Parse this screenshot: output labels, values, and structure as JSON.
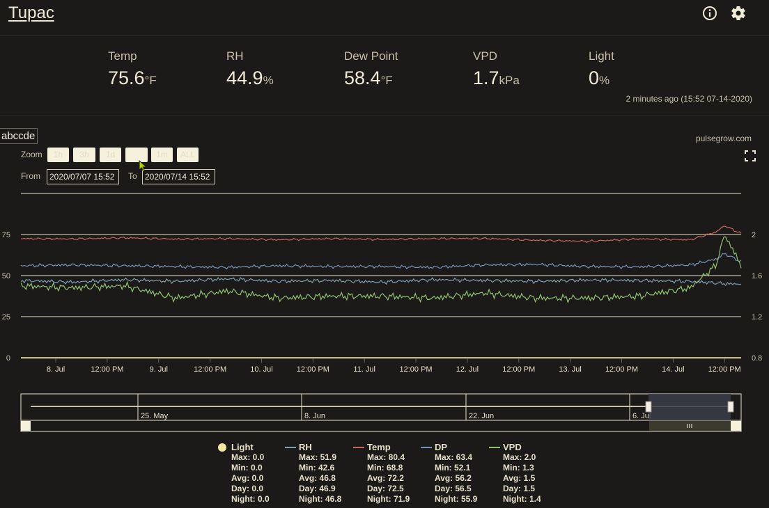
{
  "app": {
    "title": "Tupac"
  },
  "header_icons": [
    "info-icon",
    "gear-icon"
  ],
  "stats": [
    {
      "label": "Temp",
      "value": "75.6",
      "unit": "°F"
    },
    {
      "label": "RH",
      "value": "44.9",
      "unit": "%"
    },
    {
      "label": "Dew Point",
      "value": "58.4",
      "unit": "°F"
    },
    {
      "label": "VPD",
      "value": "1.7",
      "unit": "kPa"
    },
    {
      "label": "Light",
      "value": "0",
      "unit": "%"
    }
  ],
  "updated": "2 minutes ago (15:52 07-14-2020)",
  "chart_panel": {
    "title": "abccde",
    "site": "pulsegrow.com",
    "zoom_label": "Zoom",
    "zoom_buttons": [
      "1h",
      "3h",
      "1d",
      "1w",
      "1m",
      "ALL"
    ],
    "from_label": "From",
    "from_value": "2020/07/07 15:52",
    "to_label": "To",
    "to_value": "2020/07/14 15:52"
  },
  "colors": {
    "background": "#1b1a19",
    "temp": "#c8675a",
    "rh": "#7d9fb5",
    "dp": "#7693b6",
    "vpd": "#8fc26f",
    "light": "#f3e7a3",
    "grid": "#e9e2cb"
  },
  "chart_data": {
    "type": "line",
    "x_tick_labels": [
      "8. Jul",
      "12:00 PM",
      "9. Jul",
      "12:00 PM",
      "10. Jul",
      "12:00 PM",
      "11. Jul",
      "12:00 PM",
      "12. Jul",
      "12:00 PM",
      "13. Jul",
      "12:00 PM",
      "14. Jul",
      "12:00 PM"
    ],
    "y_left_ticks": [
      "75",
      "50",
      "25",
      "0"
    ],
    "y_right_ticks": [
      "2",
      "1.6",
      "1.2",
      "0.8"
    ],
    "y_left_range": [
      0,
      100
    ],
    "y_right_range": [
      0.8,
      2.4
    ],
    "xlim": [
      "2020-07-07 15:52",
      "2020-07-14 15:52"
    ],
    "series": [
      {
        "name": "Temp",
        "axis": "left",
        "color": "#c8675a",
        "x": [
          "07-07 16:00",
          "07-08 04:00",
          "07-08 16:00",
          "07-09 04:00",
          "07-09 16:00",
          "07-10 04:00",
          "07-10 16:00",
          "07-11 04:00",
          "07-11 16:00",
          "07-12 04:00",
          "07-12 16:00",
          "07-13 04:00",
          "07-13 16:00",
          "07-14 04:00",
          "07-14 10:00",
          "07-14 12:00",
          "07-14 15:52"
        ],
        "values": [
          72.5,
          72.3,
          73,
          72.2,
          72.5,
          71.8,
          72.5,
          72,
          72.5,
          72.6,
          71.5,
          70.9,
          72.3,
          71.8,
          76.5,
          80.4,
          75.6
        ]
      },
      {
        "name": "RH",
        "axis": "left",
        "color": "#7d9fb5",
        "x": [
          "07-07 16:00",
          "07-08 04:00",
          "07-08 16:00",
          "07-09 04:00",
          "07-09 16:00",
          "07-10 04:00",
          "07-10 16:00",
          "07-11 04:00",
          "07-11 16:00",
          "07-12 04:00",
          "07-12 16:00",
          "07-13 04:00",
          "07-13 16:00",
          "07-14 04:00",
          "07-14 10:00",
          "07-14 12:00",
          "07-14 15:52"
        ],
        "values": [
          47,
          46,
          47.5,
          46.5,
          48,
          46.5,
          47,
          46,
          47.5,
          47,
          46.5,
          47.3,
          47,
          46.5,
          45.5,
          45,
          44.9
        ]
      },
      {
        "name": "DP",
        "axis": "left",
        "color": "#7693b6",
        "x": [
          "07-07 16:00",
          "07-08 04:00",
          "07-08 16:00",
          "07-09 04:00",
          "07-09 16:00",
          "07-10 04:00",
          "07-10 16:00",
          "07-11 04:00",
          "07-11 16:00",
          "07-12 04:00",
          "07-12 16:00",
          "07-13 04:00",
          "07-13 16:00",
          "07-14 04:00",
          "07-14 10:00",
          "07-14 12:00",
          "07-14 15:52"
        ],
        "values": [
          56,
          56.5,
          56,
          55.5,
          55,
          56,
          55.5,
          55.5,
          55,
          56.5,
          56.8,
          55.5,
          55.3,
          56.5,
          60,
          63.4,
          58.4
        ]
      },
      {
        "name": "VPD",
        "axis": "right",
        "color": "#8fc26f",
        "x": [
          "07-07 16:00",
          "07-08 04:00",
          "07-08 16:00",
          "07-09 04:00",
          "07-09 16:00",
          "07-10 04:00",
          "07-10 16:00",
          "07-11 04:00",
          "07-11 16:00",
          "07-12 04:00",
          "07-12 16:00",
          "07-13 04:00",
          "07-13 16:00",
          "07-14 04:00",
          "07-14 10:00",
          "07-14 12:00",
          "07-14 15:52"
        ],
        "values": [
          1.5,
          1.48,
          1.5,
          1.38,
          1.45,
          1.38,
          1.4,
          1.4,
          1.38,
          1.43,
          1.38,
          1.38,
          1.4,
          1.48,
          1.7,
          2.0,
          1.7
        ]
      },
      {
        "name": "Light",
        "axis": "left",
        "color": "#f3e7a3",
        "x": [
          "07-07 16:00",
          "07-14 15:52"
        ],
        "values": [
          0,
          0
        ]
      }
    ],
    "navigator": {
      "tick_labels": [
        "25. May",
        "8. Jun",
        "22. Jun",
        "6. Jul"
      ],
      "selected_range": [
        "2020-07-07 15:52",
        "2020-07-14 15:52"
      ]
    },
    "legend": [
      {
        "name": "Light",
        "color": "#f3e7a3",
        "marker": "circle",
        "stats": [
          "Max: 0.0",
          "Min: 0.0",
          "Avg: 0.0",
          "Day: 0.0",
          "Night: 0.0"
        ]
      },
      {
        "name": "RH",
        "color": "#7d9fb5",
        "marker": "line",
        "stats": [
          "Max: 51.9",
          "Min: 42.6",
          "Avg: 46.8",
          "Day: 46.9",
          "Night: 46.8"
        ]
      },
      {
        "name": "Temp",
        "color": "#c8675a",
        "marker": "line",
        "stats": [
          "Max: 80.4",
          "Min: 68.8",
          "Avg: 72.2",
          "Day: 72.5",
          "Night: 71.9"
        ]
      },
      {
        "name": "DP",
        "color": "#7693b6",
        "marker": "line",
        "stats": [
          "Max: 63.4",
          "Min: 52.1",
          "Avg: 56.2",
          "Day: 56.5",
          "Night: 55.9"
        ]
      },
      {
        "name": "VPD",
        "color": "#8fc26f",
        "marker": "line",
        "stats": [
          "Max: 2.0",
          "Min: 1.3",
          "Avg: 1.5",
          "Day: 1.5",
          "Night: 1.4"
        ]
      }
    ]
  }
}
